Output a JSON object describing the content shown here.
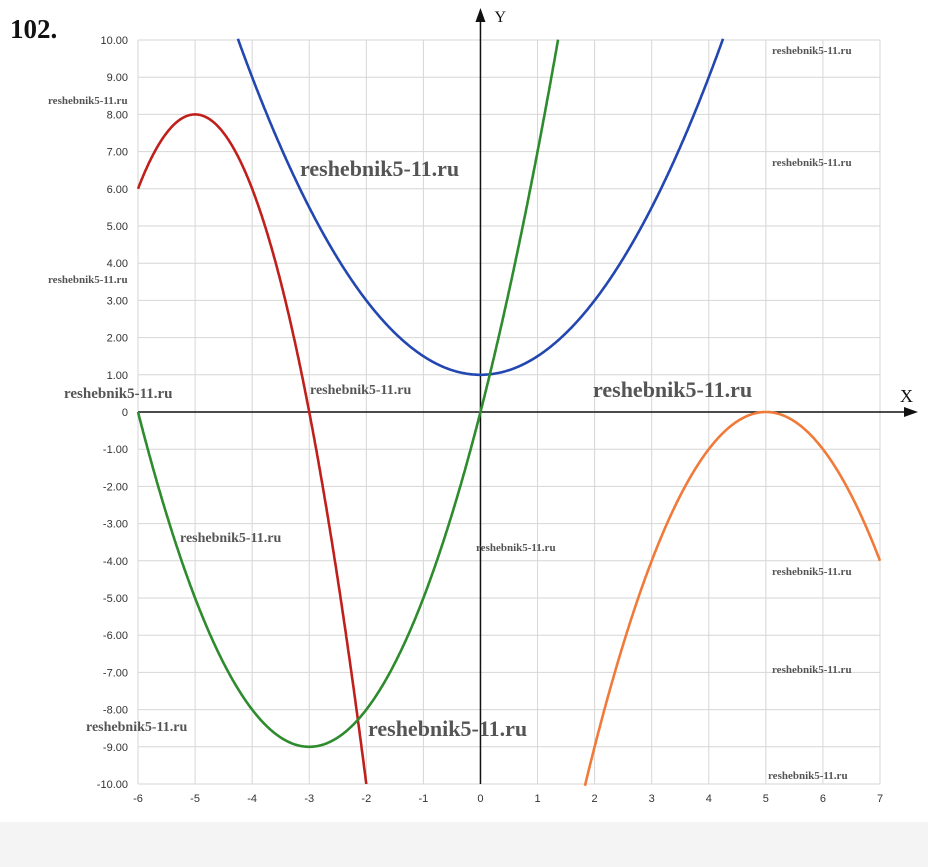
{
  "problem_number": "102.",
  "chart_data": {
    "type": "line",
    "title": "",
    "xlabel": "X",
    "ylabel": "Y",
    "xlim": [
      -6,
      7
    ],
    "ylim": [
      -10,
      10
    ],
    "grid": true,
    "x_ticks": [
      "-6",
      "-5",
      "-4",
      "-3",
      "-2",
      "-1",
      "0",
      "1",
      "2",
      "3",
      "4",
      "5",
      "6",
      "7"
    ],
    "y_ticks": [
      "10.00",
      "9.00",
      "8.00",
      "7.00",
      "6.00",
      "5.00",
      "4.00",
      "3.00",
      "2.00",
      "1.00",
      "0",
      "-1.00",
      "-2.00",
      "-3.00",
      "-4.00",
      "-5.00",
      "-6.00",
      "-7.00",
      "-8.00",
      "-9.00",
      "-10.00"
    ],
    "series": [
      {
        "name": "red-parabola",
        "formula": "y = -2(x+5)^2 + 8",
        "a": -2,
        "h": -5,
        "k": 8,
        "color": "#c0201c"
      },
      {
        "name": "blue-parabola",
        "formula": "y = 0.5x^2 + 1",
        "a": 0.5,
        "h": 0,
        "k": 1,
        "color": "#2347b0"
      },
      {
        "name": "green-parabola",
        "formula": "y = (x+3)^2 - 9",
        "a": 1,
        "h": -3,
        "k": -9,
        "color": "#2e8b2e"
      },
      {
        "name": "orange-parabola",
        "formula": "y = -(x-5)^2",
        "a": -1,
        "h": 5,
        "k": 0,
        "color": "#f07a3a"
      }
    ]
  },
  "watermark": "reshebnik5-11.ru"
}
